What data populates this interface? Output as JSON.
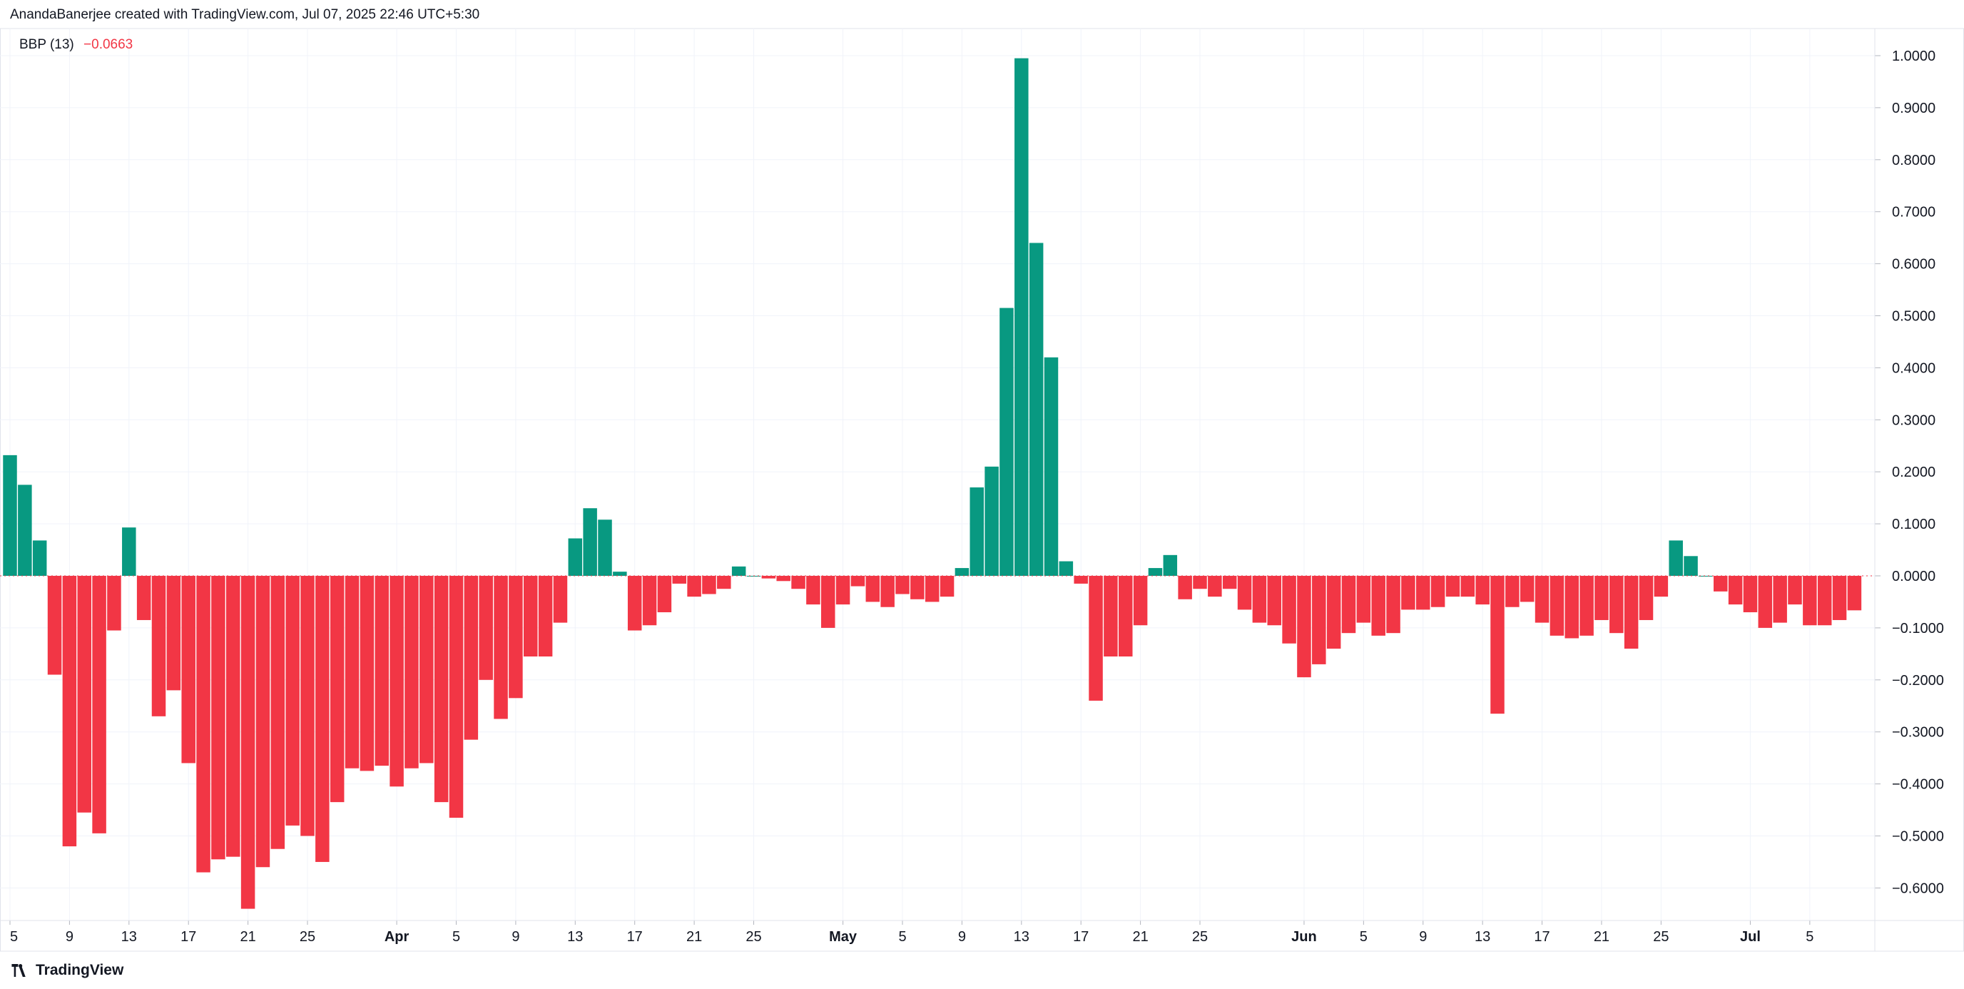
{
  "header": {
    "attribution": "AnandaBanerjee created with TradingView.com, Jul 07, 2025 22:46 UTC+5:30"
  },
  "legend": {
    "name": "BBP (13)",
    "value": "−0.0663"
  },
  "footer": {
    "brand": "TradingView"
  },
  "colors": {
    "positive": "#089981",
    "negative": "#f23645",
    "grid": "#f0f3fa",
    "axis_text": "#131722"
  },
  "chart_data": {
    "type": "bar",
    "title": "",
    "ylim": [
      -0.66,
      1.04
    ],
    "grid": true,
    "y_ticks": [
      1.0,
      0.9,
      0.8,
      0.7,
      0.6,
      0.5,
      0.4,
      0.3,
      0.2,
      0.1,
      0.0,
      -0.1,
      -0.2,
      -0.3,
      -0.4,
      -0.5,
      -0.6
    ],
    "y_tick_labels": [
      "1.0000",
      "0.9000",
      "0.8000",
      "0.7000",
      "0.6000",
      "0.5000",
      "0.4000",
      "0.3000",
      "0.2000",
      "0.1000",
      "0.0000",
      "−0.1000",
      "−0.2000",
      "−0.3000",
      "−0.4000",
      "−0.5000",
      "−0.6000"
    ],
    "x_tick_labels": [
      {
        "label": "5",
        "index": 0,
        "bold": false
      },
      {
        "label": "9",
        "index": 4,
        "bold": false
      },
      {
        "label": "13",
        "index": 8,
        "bold": false
      },
      {
        "label": "17",
        "index": 12,
        "bold": false
      },
      {
        "label": "21",
        "index": 16,
        "bold": false
      },
      {
        "label": "25",
        "index": 20,
        "bold": false
      },
      {
        "label": "Apr",
        "index": 26,
        "bold": true
      },
      {
        "label": "5",
        "index": 30,
        "bold": false
      },
      {
        "label": "9",
        "index": 34,
        "bold": false
      },
      {
        "label": "13",
        "index": 38,
        "bold": false
      },
      {
        "label": "17",
        "index": 42,
        "bold": false
      },
      {
        "label": "21",
        "index": 46,
        "bold": false
      },
      {
        "label": "25",
        "index": 50,
        "bold": false
      },
      {
        "label": "May",
        "index": 56,
        "bold": true
      },
      {
        "label": "5",
        "index": 60,
        "bold": false
      },
      {
        "label": "9",
        "index": 64,
        "bold": false
      },
      {
        "label": "13",
        "index": 68,
        "bold": false
      },
      {
        "label": "17",
        "index": 72,
        "bold": false
      },
      {
        "label": "21",
        "index": 76,
        "bold": false
      },
      {
        "label": "25",
        "index": 80,
        "bold": false
      },
      {
        "label": "Jun",
        "index": 87,
        "bold": true
      },
      {
        "label": "5",
        "index": 91,
        "bold": false
      },
      {
        "label": "9",
        "index": 95,
        "bold": false
      },
      {
        "label": "13",
        "index": 99,
        "bold": false
      },
      {
        "label": "17",
        "index": 103,
        "bold": false
      },
      {
        "label": "21",
        "index": 107,
        "bold": false
      },
      {
        "label": "25",
        "index": 111,
        "bold": false
      },
      {
        "label": "Jul",
        "index": 117,
        "bold": true
      },
      {
        "label": "5",
        "index": 121,
        "bold": false
      }
    ],
    "values": [
      0.232,
      0.175,
      0.068,
      -0.19,
      -0.52,
      -0.455,
      -0.495,
      -0.105,
      0.093,
      -0.085,
      -0.27,
      -0.22,
      -0.36,
      -0.57,
      -0.545,
      -0.54,
      -0.64,
      -0.56,
      -0.525,
      -0.48,
      -0.5,
      -0.55,
      -0.435,
      -0.37,
      -0.375,
      -0.365,
      -0.405,
      -0.37,
      -0.36,
      -0.435,
      -0.465,
      -0.315,
      -0.2,
      -0.275,
      -0.235,
      -0.155,
      -0.155,
      -0.09,
      0.072,
      0.13,
      0.108,
      0.008,
      -0.105,
      -0.095,
      -0.07,
      -0.015,
      -0.04,
      -0.035,
      -0.025,
      0.018,
      0.0,
      -0.005,
      -0.01,
      -0.025,
      -0.055,
      -0.1,
      -0.055,
      -0.02,
      -0.05,
      -0.06,
      -0.035,
      -0.045,
      -0.05,
      -0.04,
      0.015,
      0.17,
      0.21,
      0.515,
      0.995,
      0.64,
      0.42,
      0.028,
      -0.015,
      -0.24,
      -0.155,
      -0.155,
      -0.095,
      0.015,
      0.04,
      -0.045,
      -0.025,
      -0.04,
      -0.025,
      -0.065,
      -0.09,
      -0.095,
      -0.13,
      -0.195,
      -0.17,
      -0.14,
      -0.11,
      -0.09,
      -0.115,
      -0.11,
      -0.065,
      -0.065,
      -0.06,
      -0.04,
      -0.04,
      -0.055,
      -0.265,
      -0.06,
      -0.05,
      -0.09,
      -0.115,
      -0.12,
      -0.115,
      -0.085,
      -0.11,
      -0.14,
      -0.085,
      -0.04,
      0.068,
      0.038,
      0.0,
      -0.03,
      -0.055,
      -0.07,
      -0.1,
      -0.09,
      -0.055,
      -0.095,
      -0.095,
      -0.085,
      -0.0663
    ]
  }
}
